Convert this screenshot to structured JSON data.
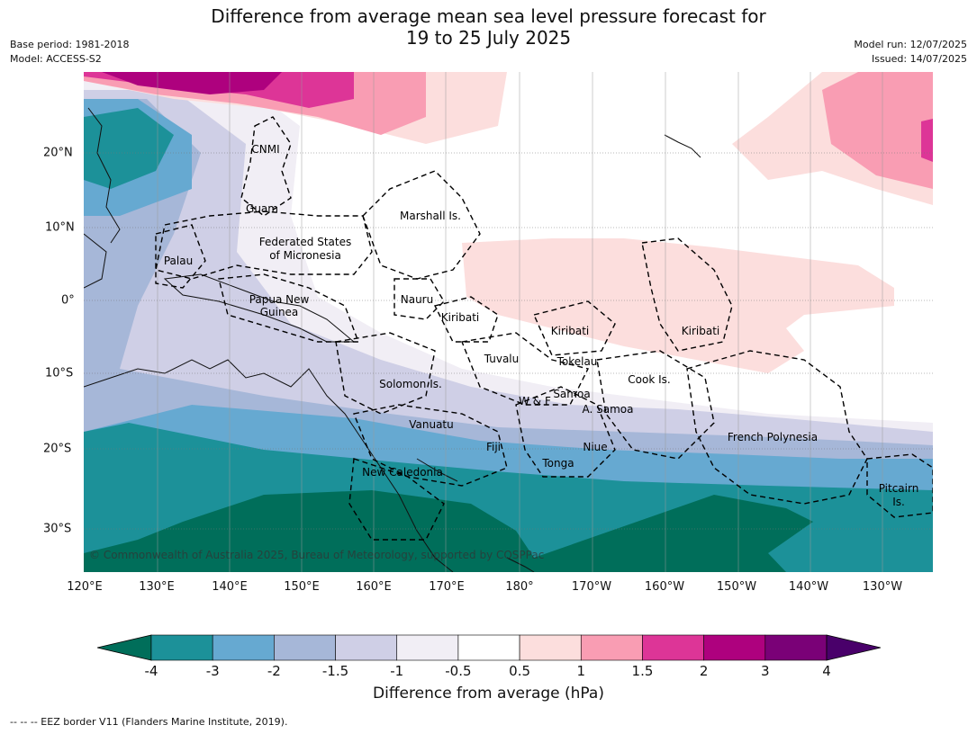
{
  "title": {
    "line1": "Difference from average mean sea level pressure forecast for",
    "line2": "19 to 25 July 2025"
  },
  "meta": {
    "base_period": "Base period: 1981-2018",
    "model": "Model: ACCESS-S2",
    "model_run": "Model run: 12/07/2025",
    "issued": "Issued: 14/07/2025"
  },
  "axes": {
    "lon_labels": [
      "120°E",
      "130°E",
      "140°E",
      "150°E",
      "160°E",
      "170°E",
      "180°",
      "170°W",
      "160°W",
      "150°W",
      "140°W",
      "130°W"
    ],
    "lat_labels": [
      "20°N",
      "10°N",
      "0°",
      "10°S",
      "20°S",
      "30°S"
    ]
  },
  "places": [
    {
      "text": "CNMI"
    },
    {
      "text": "Guam"
    },
    {
      "text": "Marshall Is."
    },
    {
      "text": "Federated States"
    },
    {
      "text": "of Micronesia"
    },
    {
      "text": "Palau"
    },
    {
      "text": "Papua New"
    },
    {
      "text": "Guinea"
    },
    {
      "text": "Nauru"
    },
    {
      "text": "Kiribati"
    },
    {
      "text": "Kiribati"
    },
    {
      "text": "Kiribati"
    },
    {
      "text": "Tuvalu"
    },
    {
      "text": "Tokelau"
    },
    {
      "text": "Solomon Is."
    },
    {
      "text": "Cook Is."
    },
    {
      "text": "W & F"
    },
    {
      "text": "Samoa"
    },
    {
      "text": "A. Samoa"
    },
    {
      "text": "Vanuatu"
    },
    {
      "text": "Fiji"
    },
    {
      "text": "Niue"
    },
    {
      "text": "French Polynesia"
    },
    {
      "text": "Tonga"
    },
    {
      "text": "New Caledonia"
    },
    {
      "text": "Pitcairn"
    },
    {
      "text": "Is."
    }
  ],
  "copyright": "© Commonwealth of Australia 2025, Bureau of Meteorology, supported by COSPPac",
  "colorbar": {
    "ticks": [
      "-4",
      "-3",
      "-2",
      "-1.5",
      "-1",
      "-0.5",
      "0.5",
      "1",
      "1.5",
      "2",
      "3",
      "4"
    ],
    "colors": [
      "#006e5a",
      "#1c9199",
      "#66a9d1",
      "#a6b7d8",
      "#cfcfe6",
      "#f1eef5",
      "#ffffff",
      "#fcdedd",
      "#f99db3",
      "#dd3597",
      "#ae017e",
      "#7a0177",
      "#49006a"
    ],
    "label": "Difference from average (hPa)"
  },
  "footer": "--  --  -- EEZ border V11 (Flanders Marine Institute, 2019)."
}
